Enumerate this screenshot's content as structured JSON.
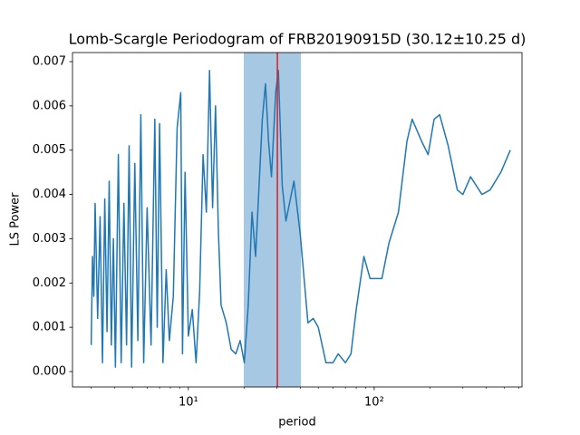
{
  "chart_data": {
    "type": "line",
    "title": "Lomb-Scargle Periodogram of FRB20190915D (30.12±10.25 d)",
    "x_label": "period",
    "y_label": "LS Power",
    "x_scale": "log",
    "xlim": [
      2.38,
      624
    ],
    "ylim": [
      -0.000348,
      0.007205
    ],
    "xticks": [
      {
        "value": 10,
        "label": "10¹"
      },
      {
        "value": 100,
        "label": "10²"
      }
    ],
    "xminorticks": [
      3,
      4,
      5,
      6,
      7,
      8,
      9,
      20,
      30,
      40,
      50,
      60,
      70,
      80,
      90,
      200,
      300,
      400,
      500,
      600
    ],
    "yticks": [
      {
        "value": 0,
        "label": "0.000"
      },
      {
        "value": 0.001,
        "label": "0.001"
      },
      {
        "value": 0.002,
        "label": "0.002"
      },
      {
        "value": 0.003,
        "label": "0.003"
      },
      {
        "value": 0.004,
        "label": "0.004"
      },
      {
        "value": 0.005,
        "label": "0.005"
      },
      {
        "value": 0.006,
        "label": "0.006"
      },
      {
        "value": 0.007,
        "label": "0.007"
      }
    ],
    "span": [
      19.87,
      40.37
    ],
    "span_color": "#a6c8e3",
    "vline": 30.12,
    "vline_color": "#e31a1c",
    "series": [
      {
        "color": "#1f77b4",
        "x": [
          3.0,
          3.05,
          3.1,
          3.15,
          3.25,
          3.35,
          3.45,
          3.55,
          3.65,
          3.75,
          3.85,
          3.95,
          4.05,
          4.2,
          4.35,
          4.5,
          4.65,
          4.8,
          4.95,
          5.15,
          5.35,
          5.55,
          5.75,
          6.0,
          6.3,
          6.6,
          6.8,
          7.0,
          7.3,
          7.6,
          7.9,
          8.3,
          8.7,
          9.1,
          9.3,
          9.6,
          10.0,
          10.5,
          11.0,
          11.5,
          12.0,
          12.5,
          13.0,
          13.5,
          14.0,
          14.5,
          15.0,
          16.0,
          17.0,
          18.0,
          19.0,
          20.0,
          21.0,
          22.0,
          23.0,
          25.0,
          26.0,
          27.0,
          28.0,
          29.5,
          30.5,
          32.0,
          33.5,
          35.0,
          37.0,
          40.0,
          44.0,
          47.0,
          50.0,
          55.0,
          60.0,
          64.0,
          70.0,
          75.0,
          80.0,
          88.0,
          95.0,
          110,
          120,
          135,
          150,
          160,
          180,
          195,
          210,
          225,
          250,
          280,
          300,
          330,
          380,
          420,
          480,
          540
        ],
        "values": [
          0.0006,
          0.0026,
          0.0017,
          0.0038,
          0.0012,
          0.0035,
          0.0002,
          0.0039,
          0.0009,
          0.0043,
          0.0006,
          0.003,
          0.0001,
          0.0049,
          0.0002,
          0.0038,
          0.0006,
          0.0051,
          0.0001,
          0.0047,
          0.0007,
          0.0058,
          0.0002,
          0.0037,
          0.0006,
          0.0057,
          0.001,
          0.0056,
          0.0002,
          0.0023,
          0.0007,
          0.0017,
          0.0055,
          0.0063,
          0.0004,
          0.0045,
          0.0008,
          0.0014,
          0.0002,
          0.0018,
          0.0049,
          0.0036,
          0.0068,
          0.0037,
          0.006,
          0.0032,
          0.0015,
          0.0011,
          0.0005,
          0.0004,
          0.0007,
          0.0002,
          0.0015,
          0.0036,
          0.0026,
          0.0057,
          0.0065,
          0.0052,
          0.0044,
          0.0063,
          0.0068,
          0.0042,
          0.0034,
          0.0038,
          0.0043,
          0.0031,
          0.0011,
          0.0012,
          0.001,
          0.0002,
          0.0002,
          0.0004,
          0.0002,
          0.0004,
          0.0014,
          0.0026,
          0.0021,
          0.0021,
          0.0029,
          0.0036,
          0.0052,
          0.0057,
          0.0052,
          0.0049,
          0.0057,
          0.0058,
          0.0051,
          0.0041,
          0.004,
          0.0044,
          0.004,
          0.0041,
          0.0045,
          0.005
        ]
      }
    ]
  }
}
